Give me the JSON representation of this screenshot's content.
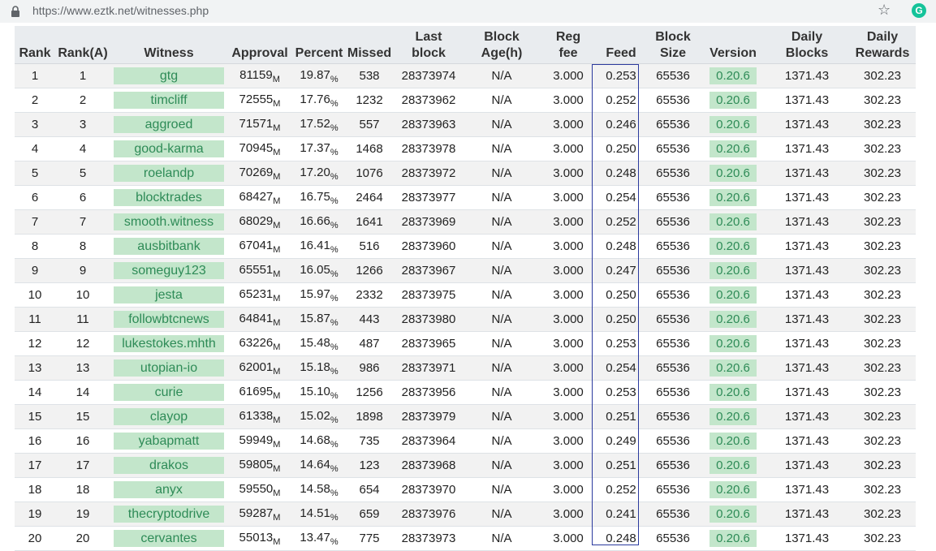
{
  "browser": {
    "url": "https://www.eztk.net/witnesses.php"
  },
  "headers": [
    [
      "Rank"
    ],
    [
      "Rank(A)"
    ],
    [
      "Witness"
    ],
    [
      "Approval"
    ],
    [
      "Percent"
    ],
    [
      "Missed"
    ],
    [
      "Last",
      "block"
    ],
    [
      "Block",
      "Age(h)"
    ],
    [
      "Reg",
      "fee"
    ],
    [
      "Feed"
    ],
    [
      "Block",
      "Size"
    ],
    [
      "Version"
    ],
    [
      "Daily",
      "Blocks"
    ],
    [
      "Daily",
      "Rewards"
    ]
  ],
  "approval_unit": "M",
  "percent_unit": "%",
  "rows": [
    {
      "rank": "1",
      "rank_a": "1",
      "witness": "gtg",
      "approval": "81159",
      "percent": "19.87",
      "missed": "538",
      "last_block": "28373974",
      "age": "N/A",
      "reg_fee": "3.000",
      "feed": "0.253",
      "size": "65536",
      "version": "0.20.6",
      "daily_blocks": "1371.43",
      "daily_rewards": "302.23"
    },
    {
      "rank": "2",
      "rank_a": "2",
      "witness": "timcliff",
      "approval": "72555",
      "percent": "17.76",
      "missed": "1232",
      "last_block": "28373962",
      "age": "N/A",
      "reg_fee": "3.000",
      "feed": "0.252",
      "size": "65536",
      "version": "0.20.6",
      "daily_blocks": "1371.43",
      "daily_rewards": "302.23"
    },
    {
      "rank": "3",
      "rank_a": "3",
      "witness": "aggroed",
      "approval": "71571",
      "percent": "17.52",
      "missed": "557",
      "last_block": "28373963",
      "age": "N/A",
      "reg_fee": "3.000",
      "feed": "0.246",
      "size": "65536",
      "version": "0.20.6",
      "daily_blocks": "1371.43",
      "daily_rewards": "302.23"
    },
    {
      "rank": "4",
      "rank_a": "4",
      "witness": "good-karma",
      "approval": "70945",
      "percent": "17.37",
      "missed": "1468",
      "last_block": "28373978",
      "age": "N/A",
      "reg_fee": "3.000",
      "feed": "0.250",
      "size": "65536",
      "version": "0.20.6",
      "daily_blocks": "1371.43",
      "daily_rewards": "302.23"
    },
    {
      "rank": "5",
      "rank_a": "5",
      "witness": "roelandp",
      "approval": "70269",
      "percent": "17.20",
      "missed": "1076",
      "last_block": "28373972",
      "age": "N/A",
      "reg_fee": "3.000",
      "feed": "0.248",
      "size": "65536",
      "version": "0.20.6",
      "daily_blocks": "1371.43",
      "daily_rewards": "302.23"
    },
    {
      "rank": "6",
      "rank_a": "6",
      "witness": "blocktrades",
      "approval": "68427",
      "percent": "16.75",
      "missed": "2464",
      "last_block": "28373977",
      "age": "N/A",
      "reg_fee": "3.000",
      "feed": "0.254",
      "size": "65536",
      "version": "0.20.6",
      "daily_blocks": "1371.43",
      "daily_rewards": "302.23"
    },
    {
      "rank": "7",
      "rank_a": "7",
      "witness": "smooth.witness",
      "approval": "68029",
      "percent": "16.66",
      "missed": "1641",
      "last_block": "28373969",
      "age": "N/A",
      "reg_fee": "3.000",
      "feed": "0.252",
      "size": "65536",
      "version": "0.20.6",
      "daily_blocks": "1371.43",
      "daily_rewards": "302.23"
    },
    {
      "rank": "8",
      "rank_a": "8",
      "witness": "ausbitbank",
      "approval": "67041",
      "percent": "16.41",
      "missed": "516",
      "last_block": "28373960",
      "age": "N/A",
      "reg_fee": "3.000",
      "feed": "0.248",
      "size": "65536",
      "version": "0.20.6",
      "daily_blocks": "1371.43",
      "daily_rewards": "302.23"
    },
    {
      "rank": "9",
      "rank_a": "9",
      "witness": "someguy123",
      "approval": "65551",
      "percent": "16.05",
      "missed": "1266",
      "last_block": "28373967",
      "age": "N/A",
      "reg_fee": "3.000",
      "feed": "0.247",
      "size": "65536",
      "version": "0.20.6",
      "daily_blocks": "1371.43",
      "daily_rewards": "302.23"
    },
    {
      "rank": "10",
      "rank_a": "10",
      "witness": "jesta",
      "approval": "65231",
      "percent": "15.97",
      "missed": "2332",
      "last_block": "28373975",
      "age": "N/A",
      "reg_fee": "3.000",
      "feed": "0.250",
      "size": "65536",
      "version": "0.20.6",
      "daily_blocks": "1371.43",
      "daily_rewards": "302.23"
    },
    {
      "rank": "11",
      "rank_a": "11",
      "witness": "followbtcnews",
      "approval": "64841",
      "percent": "15.87",
      "missed": "443",
      "last_block": "28373980",
      "age": "N/A",
      "reg_fee": "3.000",
      "feed": "0.250",
      "size": "65536",
      "version": "0.20.6",
      "daily_blocks": "1371.43",
      "daily_rewards": "302.23"
    },
    {
      "rank": "12",
      "rank_a": "12",
      "witness": "lukestokes.mhth",
      "approval": "63226",
      "percent": "15.48",
      "missed": "487",
      "last_block": "28373965",
      "age": "N/A",
      "reg_fee": "3.000",
      "feed": "0.253",
      "size": "65536",
      "version": "0.20.6",
      "daily_blocks": "1371.43",
      "daily_rewards": "302.23"
    },
    {
      "rank": "13",
      "rank_a": "13",
      "witness": "utopian-io",
      "approval": "62001",
      "percent": "15.18",
      "missed": "986",
      "last_block": "28373971",
      "age": "N/A",
      "reg_fee": "3.000",
      "feed": "0.254",
      "size": "65536",
      "version": "0.20.6",
      "daily_blocks": "1371.43",
      "daily_rewards": "302.23"
    },
    {
      "rank": "14",
      "rank_a": "14",
      "witness": "curie",
      "approval": "61695",
      "percent": "15.10",
      "missed": "1256",
      "last_block": "28373956",
      "age": "N/A",
      "reg_fee": "3.000",
      "feed": "0.253",
      "size": "65536",
      "version": "0.20.6",
      "daily_blocks": "1371.43",
      "daily_rewards": "302.23"
    },
    {
      "rank": "15",
      "rank_a": "15",
      "witness": "clayop",
      "approval": "61338",
      "percent": "15.02",
      "missed": "1898",
      "last_block": "28373979",
      "age": "N/A",
      "reg_fee": "3.000",
      "feed": "0.251",
      "size": "65536",
      "version": "0.20.6",
      "daily_blocks": "1371.43",
      "daily_rewards": "302.23"
    },
    {
      "rank": "16",
      "rank_a": "16",
      "witness": "yabapmatt",
      "approval": "59949",
      "percent": "14.68",
      "missed": "735",
      "last_block": "28373964",
      "age": "N/A",
      "reg_fee": "3.000",
      "feed": "0.249",
      "size": "65536",
      "version": "0.20.6",
      "daily_blocks": "1371.43",
      "daily_rewards": "302.23"
    },
    {
      "rank": "17",
      "rank_a": "17",
      "witness": "drakos",
      "approval": "59805",
      "percent": "14.64",
      "missed": "123",
      "last_block": "28373968",
      "age": "N/A",
      "reg_fee": "3.000",
      "feed": "0.251",
      "size": "65536",
      "version": "0.20.6",
      "daily_blocks": "1371.43",
      "daily_rewards": "302.23"
    },
    {
      "rank": "18",
      "rank_a": "18",
      "witness": "anyx",
      "approval": "59550",
      "percent": "14.58",
      "missed": "654",
      "last_block": "28373970",
      "age": "N/A",
      "reg_fee": "3.000",
      "feed": "0.252",
      "size": "65536",
      "version": "0.20.6",
      "daily_blocks": "1371.43",
      "daily_rewards": "302.23"
    },
    {
      "rank": "19",
      "rank_a": "19",
      "witness": "thecryptodrive",
      "approval": "59287",
      "percent": "14.51",
      "missed": "659",
      "last_block": "28373976",
      "age": "N/A",
      "reg_fee": "3.000",
      "feed": "0.241",
      "size": "65536",
      "version": "0.20.6",
      "daily_blocks": "1371.43",
      "daily_rewards": "302.23"
    },
    {
      "rank": "20",
      "rank_a": "20",
      "witness": "cervantes",
      "approval": "55013",
      "percent": "13.47",
      "missed": "775",
      "last_block": "28373973",
      "age": "N/A",
      "reg_fee": "3.000",
      "feed": "0.248",
      "size": "65536",
      "version": "0.20.6",
      "daily_blocks": "1371.43",
      "daily_rewards": "302.23"
    }
  ]
}
